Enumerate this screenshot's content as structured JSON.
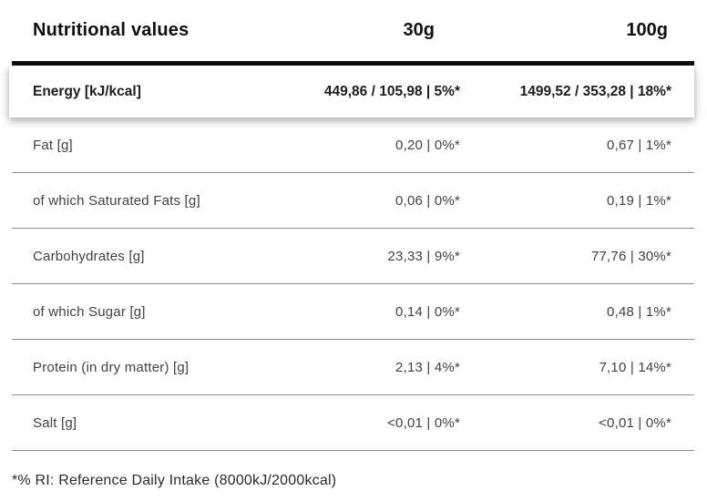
{
  "table": {
    "title": "Nutritional values",
    "columns": {
      "serving_30": "30g",
      "serving_100": "100g"
    },
    "energy_row": {
      "label": "Energy [kJ/kcal]",
      "v30": "449,86 / 105,98 | 5%*",
      "v100": "1499,52 / 353,28 | 18%*"
    },
    "rows": [
      {
        "label": "Fat [g]",
        "v30": "0,20 | 0%*",
        "v100": "0,67 | 1%*"
      },
      {
        "label": "of which Saturated Fats [g]",
        "v30": "0,06 | 0%*",
        "v100": "0,19 | 1%*"
      },
      {
        "label": "Carbohydrates [g]",
        "v30": "23,33 | 9%*",
        "v100": "77,76 | 30%*"
      },
      {
        "label": "of which Sugar [g]",
        "v30": "0,14 | 0%*",
        "v100": "0,48 | 1%*"
      },
      {
        "label": "Protein (in dry matter) [g]",
        "v30": "2,13 | 4%*",
        "v100": "7,10 | 14%*"
      },
      {
        "label": "Salt [g]",
        "v30": "<0,01 | 0%*",
        "v100": "<0,01 | 0%*"
      }
    ],
    "footnote": "*% RI: Reference Daily Intake (8000kJ/2000kcal)",
    "colors": {
      "heading_text": "#101010",
      "row_text": "#424242",
      "divider": "#8d8d8d",
      "thick_rule": "#0d0d0d",
      "background": "#ffffff"
    }
  }
}
